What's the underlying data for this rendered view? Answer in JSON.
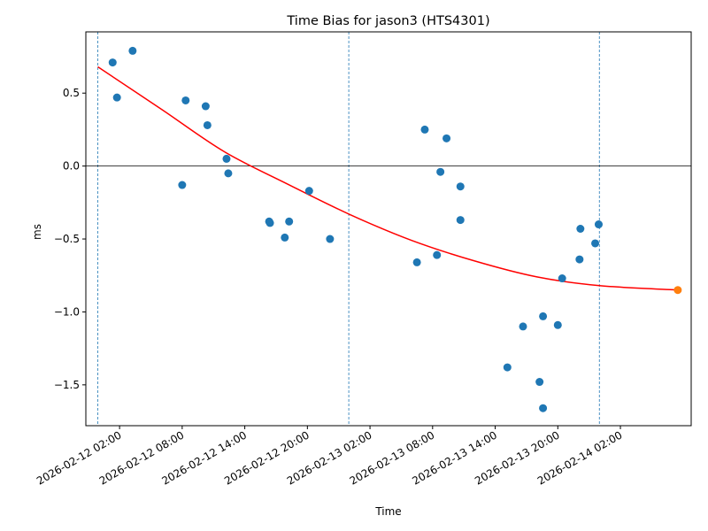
{
  "chart_data": {
    "type": "scatter",
    "title": "Time Bias for jason3 (HTS4301)",
    "xlabel": "Time",
    "ylabel": "ms",
    "x_range": [
      "2026-02-11T22:46:00",
      "2026-02-14T08:47:00"
    ],
    "ylim": [
      -1.78,
      0.92
    ],
    "grid": false,
    "legend": "none",
    "x_ticks": [
      "2026-02-12 02:00",
      "2026-02-12 08:00",
      "2026-02-12 14:00",
      "2026-02-12 20:00",
      "2026-02-13 02:00",
      "2026-02-13 08:00",
      "2026-02-13 14:00",
      "2026-02-13 20:00",
      "2026-02-14 02:00"
    ],
    "y_ticks": [
      0.5,
      0.0,
      -0.5,
      -1.0,
      -1.5
    ],
    "y_tick_labels": [
      "0.5",
      "0.0",
      "−0.5",
      "−1.0",
      "−1.5"
    ],
    "zero_line": 0.0,
    "vertical_lines": [
      "2026-02-11T23:55:00",
      "2026-02-12T23:58:00",
      "2026-02-13T23:59:00"
    ],
    "colors": {
      "points": "#1f77b4",
      "fit": "#ff0000",
      "highlight": "#ff7f0e",
      "vline": "#1f77b4"
    },
    "series": [
      {
        "marker": "circle",
        "points": [
          [
            "2026-02-12T01:20:00",
            0.71
          ],
          [
            "2026-02-12T01:45:00",
            0.47
          ],
          [
            "2026-02-12T03:15:00",
            0.79
          ],
          [
            "2026-02-12T08:00:00",
            -0.13
          ],
          [
            "2026-02-12T08:20:00",
            0.45
          ],
          [
            "2026-02-12T10:15:00",
            0.41
          ],
          [
            "2026-02-12T10:25:00",
            0.28
          ],
          [
            "2026-02-12T12:15:00",
            0.05
          ],
          [
            "2026-02-12T12:25:00",
            -0.05
          ],
          [
            "2026-02-12T16:20:00",
            -0.38
          ],
          [
            "2026-02-12T16:25:00",
            -0.39
          ],
          [
            "2026-02-12T17:50:00",
            -0.49
          ],
          [
            "2026-02-12T18:15:00",
            -0.38
          ],
          [
            "2026-02-12T20:10:00",
            -0.17
          ],
          [
            "2026-02-12T22:10:00",
            -0.5
          ],
          [
            "2026-02-13T06:30:00",
            -0.66
          ],
          [
            "2026-02-13T07:15:00",
            0.25
          ],
          [
            "2026-02-13T08:25:00",
            -0.61
          ],
          [
            "2026-02-13T08:45:00",
            -0.04
          ],
          [
            "2026-02-13T09:20:00",
            0.19
          ],
          [
            "2026-02-13T10:40:00",
            -0.14
          ],
          [
            "2026-02-13T10:40:00",
            -0.37
          ],
          [
            "2026-02-13T15:10:00",
            -1.38
          ],
          [
            "2026-02-13T16:40:00",
            -1.1
          ],
          [
            "2026-02-13T18:15:00",
            -1.48
          ],
          [
            "2026-02-13T18:35:00",
            -1.03
          ],
          [
            "2026-02-13T18:35:00",
            -1.66
          ],
          [
            "2026-02-13T20:00:00",
            -1.09
          ],
          [
            "2026-02-13T20:25:00",
            -0.77
          ],
          [
            "2026-02-13T22:05:00",
            -0.64
          ],
          [
            "2026-02-13T22:10:00",
            -0.43
          ],
          [
            "2026-02-13T23:35:00",
            -0.53
          ],
          [
            "2026-02-13T23:55:00",
            -0.4
          ]
        ]
      },
      {
        "type": "line",
        "style": "fit curve",
        "points": [
          [
            "2026-02-11T23:55:00",
            0.68
          ],
          [
            "2026-02-12T06:00:00",
            0.39
          ],
          [
            "2026-02-12T12:00:00",
            0.1
          ],
          [
            "2026-02-12T18:00:00",
            -0.12
          ],
          [
            "2026-02-13T00:00:00",
            -0.33
          ],
          [
            "2026-02-13T06:00:00",
            -0.51
          ],
          [
            "2026-02-13T12:00:00",
            -0.65
          ],
          [
            "2026-02-13T18:00:00",
            -0.76
          ],
          [
            "2026-02-14T00:00:00",
            -0.82
          ],
          [
            "2026-02-14T07:30:00",
            -0.85
          ]
        ]
      },
      {
        "marker": "circle",
        "style": "highlight",
        "points": [
          [
            "2026-02-14T07:30:00",
            -0.85
          ]
        ]
      }
    ]
  }
}
